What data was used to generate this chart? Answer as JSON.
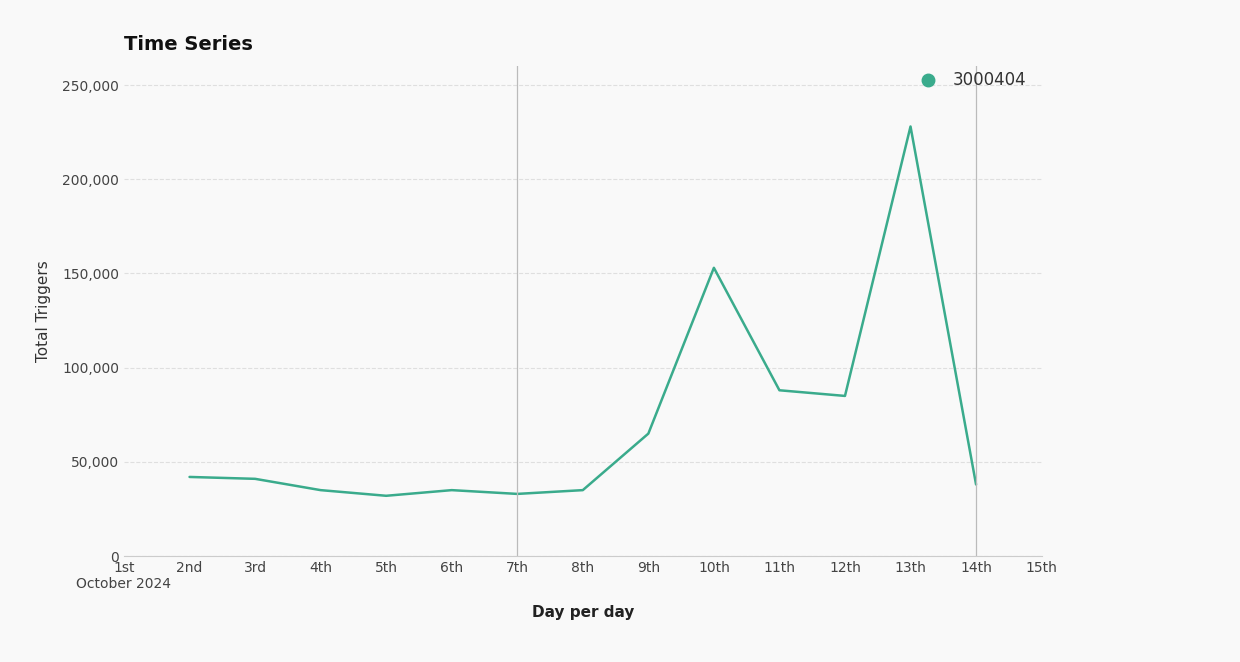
{
  "title": "Time Series",
  "xlabel": "Day per day",
  "ylabel": "Total Triggers",
  "legend_label": "3000404",
  "line_color": "#3aab8c",
  "background_color": "#f9f9f9",
  "x_labels": [
    "1st\nOctober 2024",
    "2nd",
    "3rd",
    "4th",
    "5th",
    "6th",
    "7th",
    "8th",
    "9th",
    "10th",
    "11th",
    "12th",
    "13th",
    "14th",
    "15th"
  ],
  "x_positions": [
    1,
    2,
    3,
    4,
    5,
    6,
    7,
    8,
    9,
    10,
    11,
    12,
    13,
    14,
    15
  ],
  "y_values": [
    null,
    42000,
    41000,
    35000,
    32000,
    35000,
    33000,
    35000,
    65000,
    153000,
    88000,
    85000,
    228000,
    38000,
    null
  ],
  "vlines": [
    7,
    14
  ],
  "ylim": [
    0,
    260000
  ],
  "yticks": [
    0,
    50000,
    100000,
    150000,
    200000,
    250000
  ],
  "grid_color": "#dddddd",
  "vline_color": "#bbbbbb",
  "title_fontsize": 14,
  "label_fontsize": 11,
  "tick_fontsize": 10
}
